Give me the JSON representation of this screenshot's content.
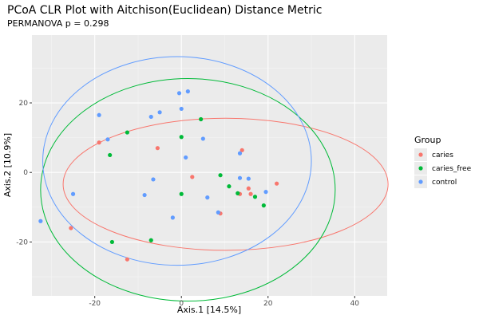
{
  "chart_data": {
    "type": "scatter",
    "title": "PCoA CLR Plot with Aitchison(Euclidean) Distance Metric",
    "subtitle": "PERMANOVA p = 0.298",
    "xlabel": "Axis.1   [14.5%]",
    "ylabel": "Axis.2   [10.9%]",
    "xlim": [
      -34.5,
      47.5
    ],
    "ylim": [
      -35.5,
      39.5
    ],
    "x_ticks": [
      -20,
      0,
      20,
      40
    ],
    "y_ticks": [
      -20,
      0,
      20
    ],
    "x_tick_labels": [
      "-20",
      "0",
      "20",
      "40"
    ],
    "y_tick_labels": [
      "-20",
      "0",
      "20"
    ],
    "grid": true,
    "legend": {
      "title": "Group",
      "position": "right",
      "entries": [
        "caries",
        "caries_free",
        "control"
      ]
    },
    "series": [
      {
        "name": "caries",
        "color": "#F8766D",
        "points": [
          [
            -19.0,
            8.6
          ],
          [
            -25.5,
            -16.0
          ],
          [
            -12.5,
            -25.0
          ],
          [
            -5.5,
            7.0
          ],
          [
            2.5,
            -1.3
          ],
          [
            9.0,
            -11.8
          ],
          [
            13.5,
            -6.2
          ],
          [
            14.0,
            6.4
          ],
          [
            15.5,
            -4.6
          ],
          [
            16.0,
            -6.2
          ],
          [
            22.0,
            -3.2
          ]
        ]
      },
      {
        "name": "caries_free",
        "color": "#00BA38",
        "points": [
          [
            -16.5,
            5.0
          ],
          [
            -12.5,
            11.5
          ],
          [
            -16.0,
            -20.0
          ],
          [
            -7.0,
            -19.5
          ],
          [
            0.0,
            10.2
          ],
          [
            0.0,
            -6.2
          ],
          [
            4.5,
            15.3
          ],
          [
            9.0,
            -0.8
          ],
          [
            11.0,
            -4.0
          ],
          [
            13.0,
            -6.0
          ],
          [
            17.0,
            -7.0
          ],
          [
            19.0,
            -9.5
          ]
        ]
      },
      {
        "name": "control",
        "color": "#619CFF",
        "points": [
          [
            -32.5,
            -14.0
          ],
          [
            -25.0,
            -6.2
          ],
          [
            -19.0,
            16.5
          ],
          [
            -17.0,
            9.5
          ],
          [
            -7.0,
            16.0
          ],
          [
            -5.0,
            17.3
          ],
          [
            -6.5,
            -2.0
          ],
          [
            -8.5,
            -6.5
          ],
          [
            -2.0,
            -13.0
          ],
          [
            -0.5,
            22.8
          ],
          [
            1.5,
            23.3
          ],
          [
            0.0,
            18.3
          ],
          [
            1.0,
            4.3
          ],
          [
            5.0,
            9.7
          ],
          [
            6.0,
            -7.2
          ],
          [
            8.5,
            -11.5
          ],
          [
            13.5,
            -1.6
          ],
          [
            13.5,
            5.5
          ],
          [
            15.5,
            -1.8
          ],
          [
            19.5,
            -5.6
          ]
        ]
      }
    ],
    "ellipses": [
      {
        "group": "caries",
        "center": [
          10.2,
          -3.4
        ],
        "rx": 37.5,
        "ry": 19.0,
        "angle_deg": 0
      },
      {
        "group": "caries_free",
        "center": [
          1.5,
          -5.0
        ],
        "rx": 34.0,
        "ry": 32.0,
        "angle_deg": 0
      },
      {
        "group": "control",
        "center": [
          -1.0,
          3.3
        ],
        "rx": 31.0,
        "ry": 30.0,
        "angle_deg": 0
      }
    ]
  }
}
